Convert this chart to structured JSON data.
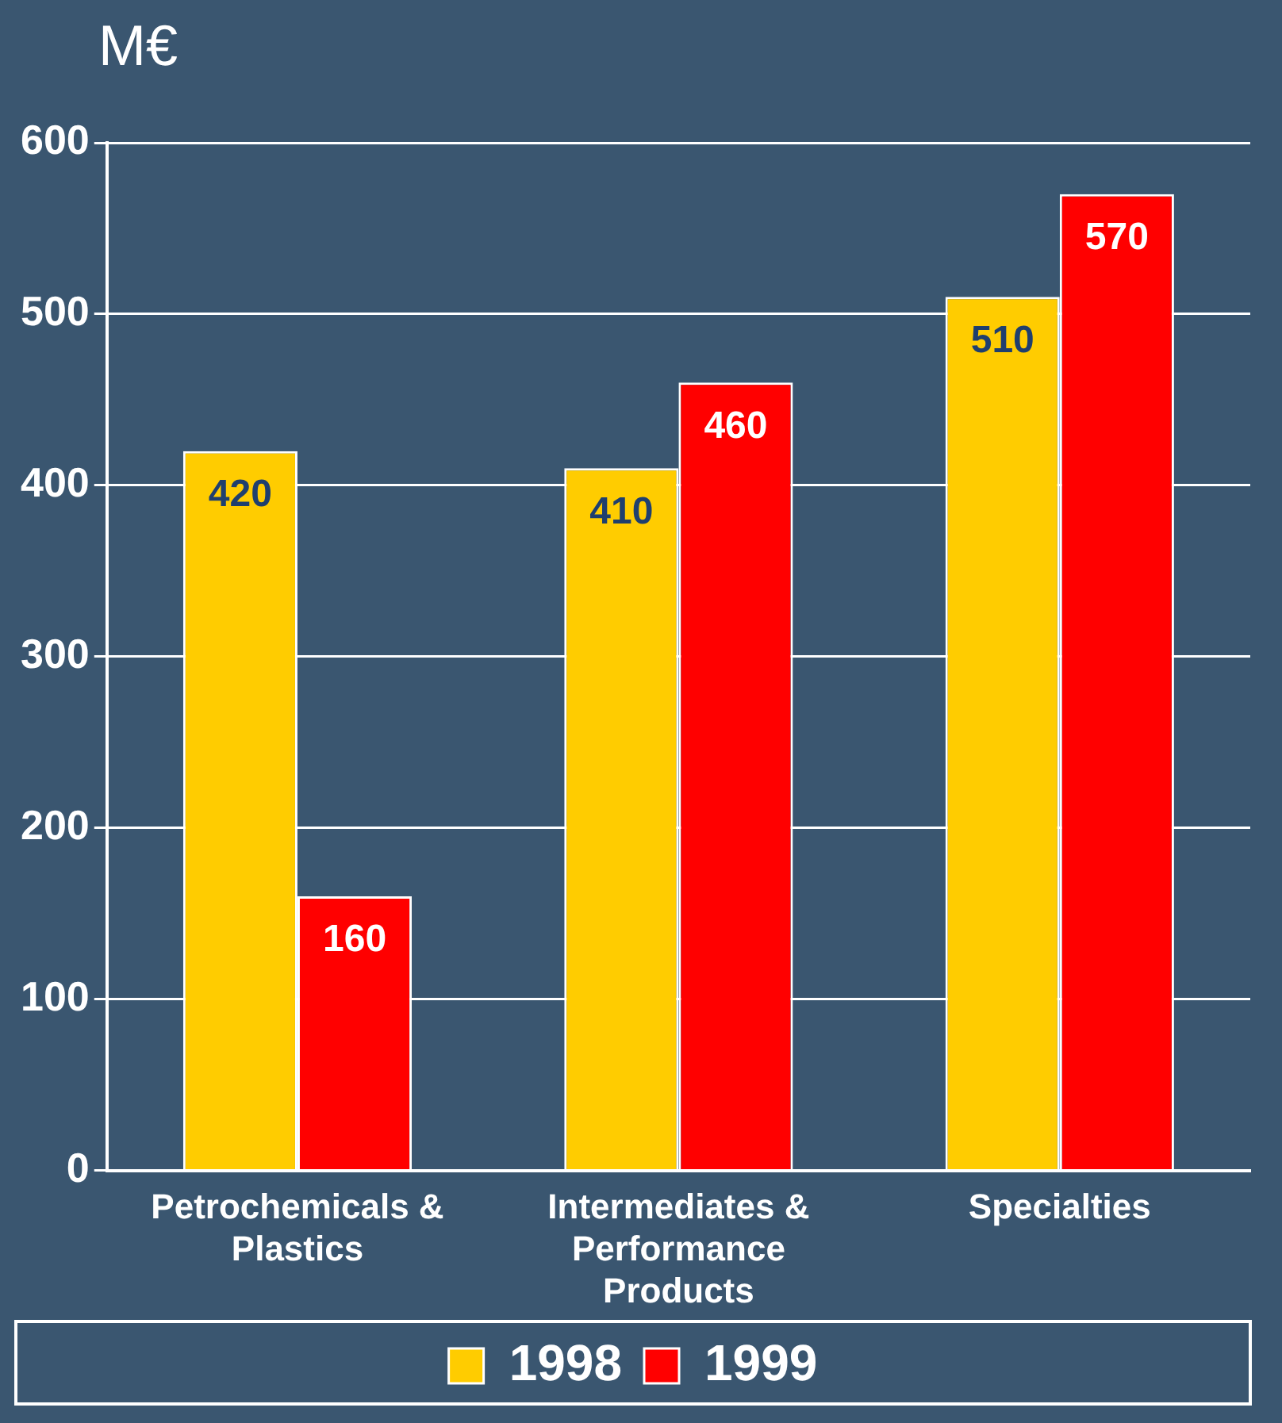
{
  "chart_data": {
    "type": "bar",
    "ylabel": "M€",
    "categories": [
      "Petrochemicals & Plastics",
      "Intermediates & Performance Products",
      "Specialties"
    ],
    "series": [
      {
        "name": "1998",
        "color": "#ffcc00",
        "values": [
          420,
          410,
          510
        ]
      },
      {
        "name": "1999",
        "color": "#ff0000",
        "values": [
          160,
          460,
          570
        ]
      }
    ],
    "ylim": [
      0,
      600
    ],
    "yticks": [
      0,
      100,
      200,
      300,
      400,
      500,
      600
    ],
    "grid": "y",
    "legend": "bottom",
    "data_labels": true
  }
}
